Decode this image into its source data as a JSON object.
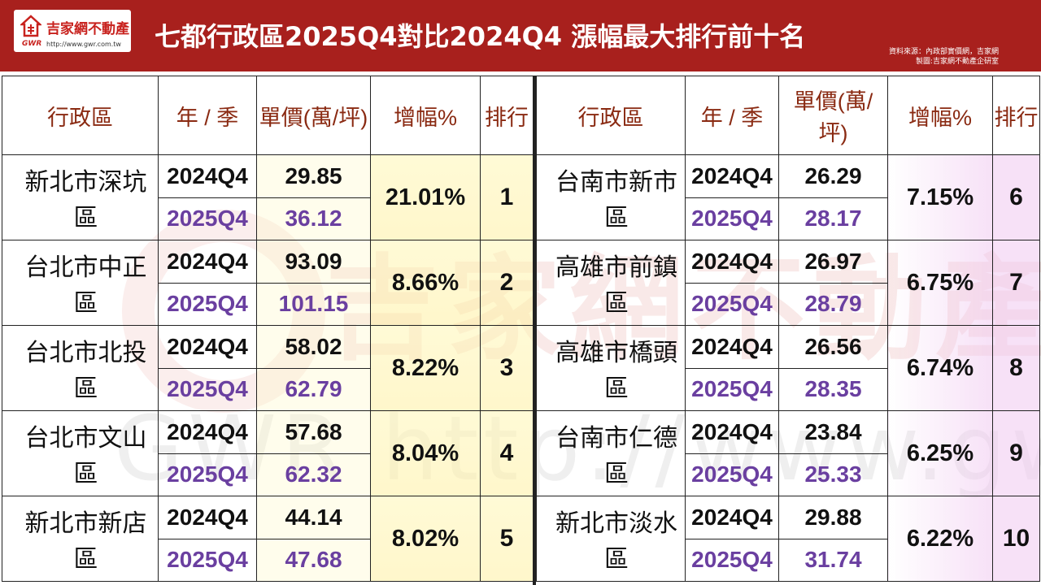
{
  "header": {
    "title": "七都行政區2025Q4對比2024Q4 漲幅最大排行前十名",
    "logo_name": "吉家網不動產",
    "logo_gwr": "GWR",
    "logo_url": "http://www.gwr.com.tw",
    "source_line1": "資料來源：內政部實價網，吉家網",
    "source_line2": "製圖:吉家網不動產企研室"
  },
  "watermark": {
    "text": "吉家網不動產",
    "url": "GWR http://www.gwr.com.tw"
  },
  "columns": {
    "region": "行政區",
    "period": "年 / 季",
    "price": "單價(萬/坪)",
    "growth": "增幅%",
    "rank": "排行"
  },
  "left_rows": [
    {
      "region": "新北市深坑區",
      "p1": "2024Q4",
      "v1": "29.85",
      "p2": "2025Q4",
      "v2": "36.12",
      "growth": "21.01%",
      "rank": "1"
    },
    {
      "region": "台北市中正區",
      "p1": "2024Q4",
      "v1": "93.09",
      "p2": "2025Q4",
      "v2": "101.15",
      "growth": "8.66%",
      "rank": "2"
    },
    {
      "region": "台北市北投區",
      "p1": "2024Q4",
      "v1": "58.02",
      "p2": "2025Q4",
      "v2": "62.79",
      "growth": "8.22%",
      "rank": "3"
    },
    {
      "region": "台北市文山區",
      "p1": "2024Q4",
      "v1": "57.68",
      "p2": "2025Q4",
      "v2": "62.32",
      "growth": "8.04%",
      "rank": "4"
    },
    {
      "region": "新北市新店區",
      "p1": "2024Q4",
      "v1": "44.14",
      "p2": "2025Q4",
      "v2": "47.68",
      "growth": "8.02%",
      "rank": "5"
    }
  ],
  "right_rows": [
    {
      "region": "台南市新市區",
      "p1": "2024Q4",
      "v1": "26.29",
      "p2": "2025Q4",
      "v2": "28.17",
      "growth": "7.15%",
      "rank": "6"
    },
    {
      "region": "高雄市前鎮區",
      "p1": "2024Q4",
      "v1": "26.97",
      "p2": "2025Q4",
      "v2": "28.79",
      "growth": "6.75%",
      "rank": "7"
    },
    {
      "region": "高雄市橋頭區",
      "p1": "2024Q4",
      "v1": "26.56",
      "p2": "2025Q4",
      "v2": "28.35",
      "growth": "6.74%",
      "rank": "8"
    },
    {
      "region": "台南市仁德區",
      "p1": "2024Q4",
      "v1": "23.84",
      "p2": "2025Q4",
      "v2": "25.33",
      "growth": "6.25%",
      "rank": "9"
    },
    {
      "region": "新北市淡水區",
      "p1": "2024Q4",
      "v1": "29.88",
      "p2": "2025Q4",
      "v2": "31.74",
      "growth": "6.22%",
      "rank": "10"
    }
  ],
  "colors": {
    "header_bg": "#a8201d",
    "header_text": "#8a2a12",
    "year_2025": "#6a3fa0",
    "left_highlight": "#fff3b0",
    "right_highlight": "#f0c8f0"
  }
}
